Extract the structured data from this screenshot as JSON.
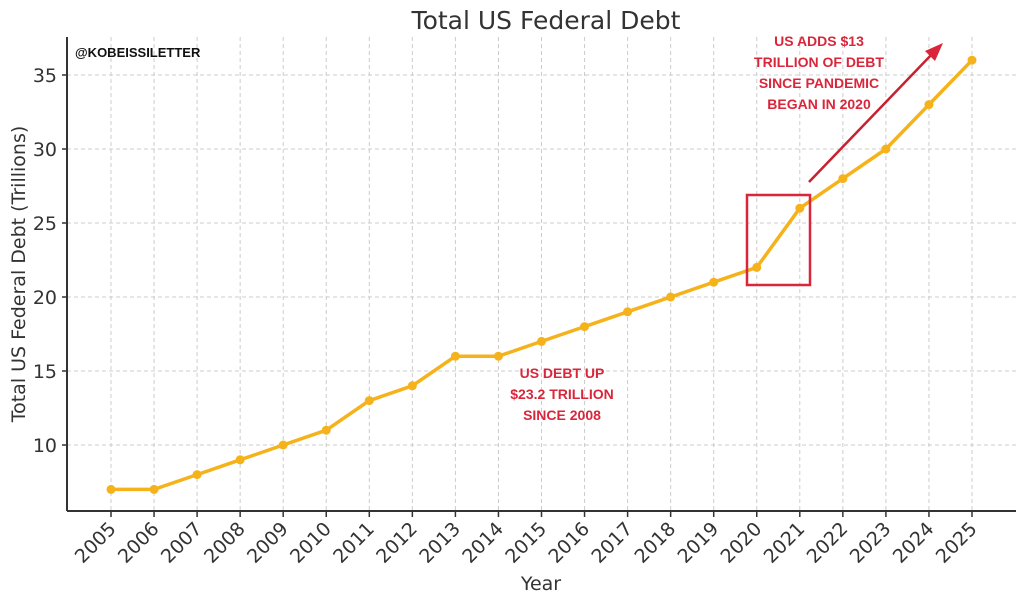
{
  "chart_data": {
    "type": "line",
    "title": "Total US Federal Debt",
    "xlabel": "Year",
    "ylabel": "Total US Federal Debt (Trillions)",
    "categories": [
      "2005",
      "2006",
      "2007",
      "2008",
      "2009",
      "2010",
      "2011",
      "2012",
      "2013",
      "2014",
      "2015",
      "2016",
      "2017",
      "2018",
      "2019",
      "2020",
      "2021",
      "2022",
      "2023",
      "2024",
      "2025"
    ],
    "series": [
      {
        "name": "Total US Federal Debt",
        "values": [
          7,
          7,
          8,
          9,
          10,
          11,
          13,
          14,
          16,
          16,
          17,
          18,
          19,
          20,
          21,
          22,
          26,
          28,
          30,
          33,
          36
        ],
        "color": "#f5b21b"
      }
    ],
    "yticks": [
      10,
      15,
      20,
      25,
      30,
      35
    ],
    "ylim": [
      5.5,
      37.5
    ],
    "grid": true,
    "legend": null,
    "annotations": [
      {
        "text": [
          "US ADDS $13",
          "TRILLION OF DEBT",
          "SINCE PANDEMIC",
          "BEGAN IN 2020"
        ],
        "color": "#d9263a"
      },
      {
        "text": [
          "US DEBT UP",
          "$23.2 TRILLION",
          "SINCE 2008"
        ],
        "color": "#d9263a"
      },
      {
        "type": "box",
        "around": [
          "2020",
          "2021"
        ],
        "color": "#d9263a"
      },
      {
        "type": "arrow",
        "direction": "up-right",
        "color": "#d9263a"
      }
    ],
    "watermark": "@KOBEISSILETTER"
  },
  "colors": {
    "line": "#f5b21b",
    "annotation": "#d9263a",
    "axis": "#333333",
    "grid": "#cccccc"
  }
}
